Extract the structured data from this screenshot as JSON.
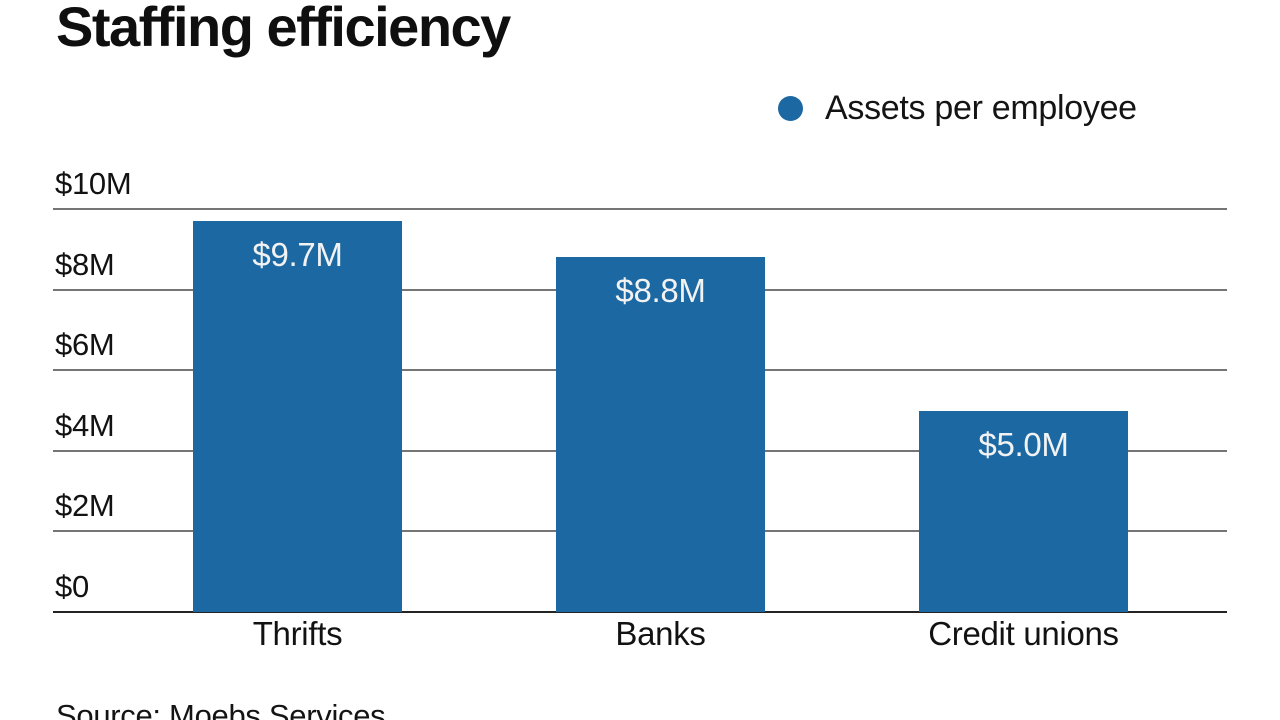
{
  "title": "Staffing efficiency",
  "legend": {
    "label": "Assets per employee"
  },
  "source": "Source: Moebs Services",
  "colors": {
    "bar": "#1c68a3",
    "legend_dot": "#1c68a3",
    "gridline": "#757575",
    "axis_line": "#242424",
    "text": "#121212",
    "bar_value_text": "#f2f2f2"
  },
  "chart_data": {
    "type": "bar",
    "title": "Staffing efficiency",
    "series_name": "Assets per employee",
    "categories": [
      "Thrifts",
      "Banks",
      "Credit unions"
    ],
    "values": [
      9.7,
      8.8,
      5.0
    ],
    "data_labels": [
      "$9.7M",
      "$8.8M",
      "$5.0M"
    ],
    "ylabel_unit": "$M",
    "ylim": [
      0,
      10
    ],
    "y_ticks": [
      {
        "label": "$10M",
        "value": 10
      },
      {
        "label": "$8M",
        "value": 8
      },
      {
        "label": "$6M",
        "value": 6
      },
      {
        "label": "$4M",
        "value": 4
      },
      {
        "label": "$2M",
        "value": 2
      },
      {
        "label": "$0",
        "value": 0
      }
    ],
    "grid": true,
    "legend_position": "top-right",
    "source": "Source: Moebs Services"
  }
}
